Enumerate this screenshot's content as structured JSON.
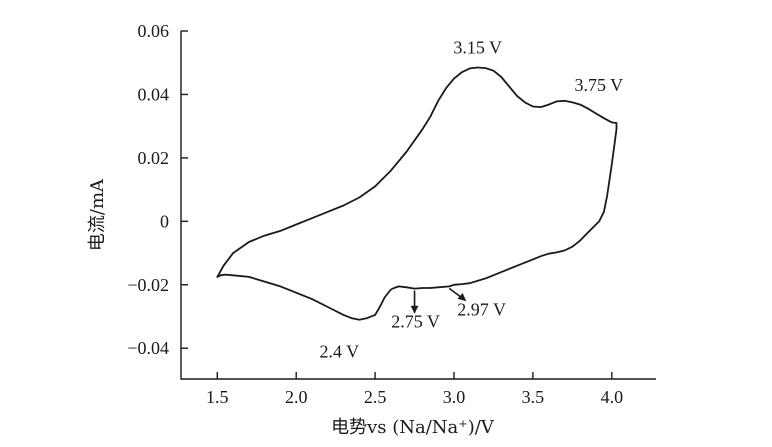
{
  "chart_data": {
    "type": "line",
    "title": "",
    "xlabel": "电势vs (Na/Na⁺)/V",
    "ylabel": "电流/mA",
    "xlim": [
      1.27,
      4.28
    ],
    "ylim": [
      -0.0497,
      0.06
    ],
    "xticks": [
      1.5,
      2.0,
      2.5,
      3.0,
      3.5,
      4.0
    ],
    "xtick_labels": [
      "1.5",
      "2.0",
      "2.5",
      "3.0",
      "3.5",
      "4.0"
    ],
    "yticks": [
      -0.04,
      -0.02,
      0,
      0.02,
      0.04,
      0.06
    ],
    "ytick_labels": [
      "−0.04",
      "−0.02",
      "0",
      "0.02",
      "0.04",
      "0.06"
    ],
    "grid": false,
    "legend": "none",
    "series": [
      {
        "x": [
          1.5,
          1.54,
          1.6,
          1.7,
          1.8,
          1.9,
          2.0,
          2.1,
          2.2,
          2.3,
          2.4,
          2.5,
          2.6,
          2.7,
          2.8,
          2.85,
          2.9,
          2.95,
          3.0,
          3.05,
          3.1,
          3.15,
          3.2,
          3.25,
          3.3,
          3.35,
          3.4,
          3.45,
          3.5,
          3.55,
          3.6,
          3.65,
          3.7,
          3.75,
          3.8,
          3.85,
          3.9,
          3.95,
          4.0,
          4.03,
          4.03,
          4.0,
          3.97,
          3.95,
          3.92,
          3.9,
          3.85,
          3.8,
          3.75,
          3.7,
          3.65,
          3.6,
          3.55,
          3.5,
          3.4,
          3.3,
          3.2,
          3.1,
          3.05,
          3.0,
          2.97,
          2.9,
          2.85,
          2.8,
          2.75,
          2.7,
          2.65,
          2.62,
          2.6,
          2.56,
          2.53,
          2.5,
          2.45,
          2.4,
          2.35,
          2.3,
          2.2,
          2.1,
          2.0,
          1.9,
          1.8,
          1.7,
          1.6,
          1.55,
          1.52,
          1.5
        ],
        "y": [
          -0.0175,
          -0.014,
          -0.01,
          -0.0065,
          -0.0045,
          -0.003,
          -0.001,
          0.001,
          0.003,
          0.005,
          0.0075,
          0.011,
          0.016,
          0.022,
          0.029,
          0.033,
          0.038,
          0.042,
          0.045,
          0.047,
          0.0482,
          0.0485,
          0.0483,
          0.0475,
          0.0455,
          0.0425,
          0.0395,
          0.0375,
          0.0362,
          0.036,
          0.0368,
          0.0378,
          0.038,
          0.0375,
          0.0368,
          0.0355,
          0.034,
          0.0325,
          0.0312,
          0.031,
          0.029,
          0.018,
          0.008,
          0.003,
          0.0,
          -0.001,
          -0.0035,
          -0.006,
          -0.008,
          -0.0092,
          -0.0098,
          -0.0102,
          -0.011,
          -0.012,
          -0.014,
          -0.016,
          -0.018,
          -0.0195,
          -0.0198,
          -0.02,
          -0.0205,
          -0.0208,
          -0.021,
          -0.021,
          -0.0212,
          -0.0208,
          -0.0205,
          -0.021,
          -0.0215,
          -0.024,
          -0.027,
          -0.0295,
          -0.0305,
          -0.031,
          -0.0305,
          -0.0295,
          -0.027,
          -0.0245,
          -0.0225,
          -0.0205,
          -0.019,
          -0.0175,
          -0.017,
          -0.0168,
          -0.017,
          -0.0175
        ]
      }
    ],
    "annotations": [
      {
        "text": "3.15 V",
        "x": 3.15,
        "y": 0.0485,
        "arrow": false
      },
      {
        "text": "3.75 V",
        "x": 3.7,
        "y": 0.038,
        "arrow": false
      },
      {
        "text": "2.4 V",
        "x": 2.4,
        "y": -0.031,
        "arrow": false
      },
      {
        "text": "2.75 V",
        "x": 2.75,
        "y": -0.0212,
        "arrow": true
      },
      {
        "text": "2.97 V",
        "x": 2.97,
        "y": -0.0205,
        "arrow": true
      }
    ]
  }
}
